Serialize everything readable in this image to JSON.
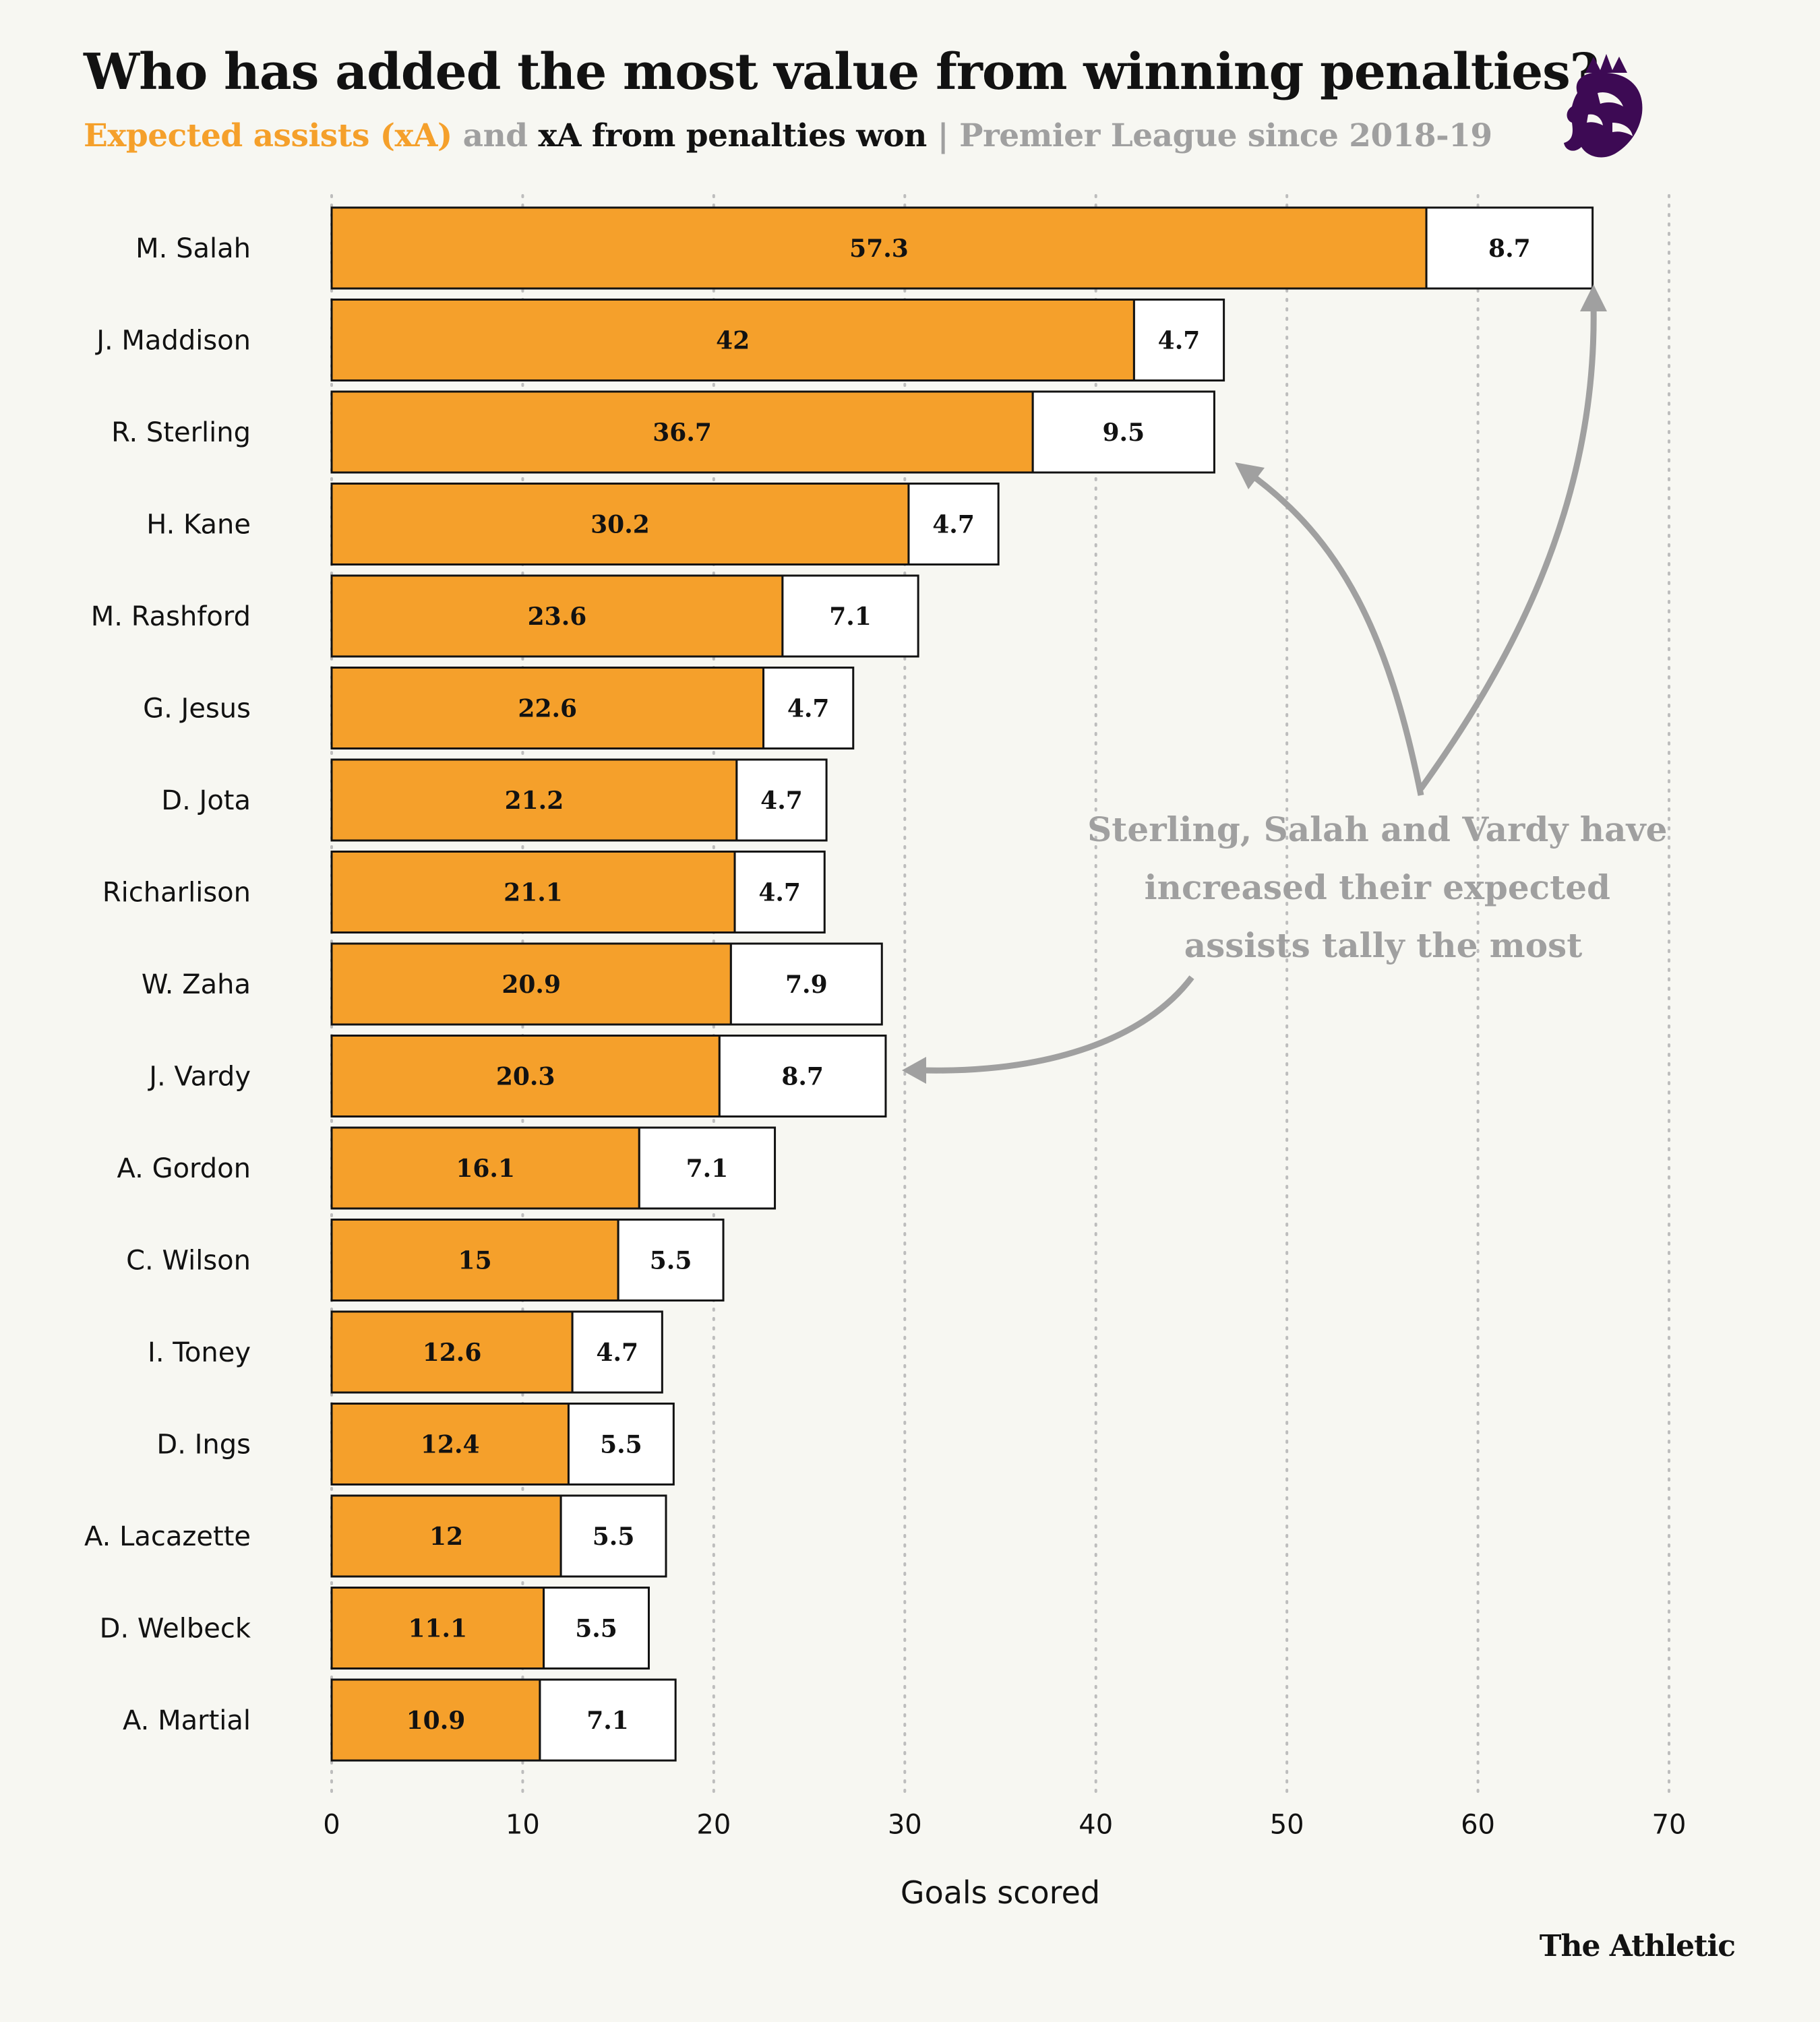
{
  "header": {
    "title": "Who has added the most value from winning penalties?",
    "subtitle_part1": "Expected assists (xA)",
    "subtitle_part2": " and ",
    "subtitle_part3": "xA from penalties won",
    "subtitle_part4": " | ",
    "subtitle_part5": "Premier League since 2018-19"
  },
  "brand": "The Athletic",
  "logo_icon": "premier-league-lion-icon",
  "colors": {
    "xa": "#f5a02b",
    "penalty": "#ffffff",
    "annotation": "#a0a0a0",
    "text": "#121212"
  },
  "chart_data": {
    "type": "bar",
    "orientation": "horizontal",
    "stacked": true,
    "categories": [
      "M. Salah",
      "J. Maddison",
      "R. Sterling",
      "H. Kane",
      "M. Rashford",
      "G. Jesus",
      "D. Jota",
      "Richarlison",
      "W. Zaha",
      "J. Vardy",
      "A. Gordon",
      "C. Wilson",
      "I. Toney",
      "D. Ings",
      "A. Lacazette",
      "D. Welbeck",
      "A. Martial"
    ],
    "series": [
      {
        "name": "Expected assists (xA)",
        "values": [
          57.3,
          42,
          36.7,
          30.2,
          23.6,
          22.6,
          21.2,
          21.1,
          20.9,
          20.3,
          16.1,
          15,
          12.6,
          12.4,
          12,
          11.1,
          10.9
        ]
      },
      {
        "name": "xA from penalties won",
        "values": [
          8.7,
          4.7,
          9.5,
          4.7,
          7.1,
          4.7,
          4.7,
          4.7,
          7.9,
          8.7,
          7.1,
          5.5,
          4.7,
          5.5,
          5.5,
          5.5,
          7.1
        ]
      }
    ],
    "xlabel": "Goals scored",
    "xlim": [
      0,
      70
    ],
    "xticks": [
      0,
      10,
      20,
      30,
      40,
      50,
      60,
      70
    ],
    "grid": "vertical dotted",
    "annotation": {
      "lines": [
        "Sterling, Salah and Vardy have",
        "increased their expected",
        "assists tally the most"
      ],
      "targets": [
        "R. Sterling",
        "M. Salah",
        "J. Vardy"
      ]
    }
  }
}
